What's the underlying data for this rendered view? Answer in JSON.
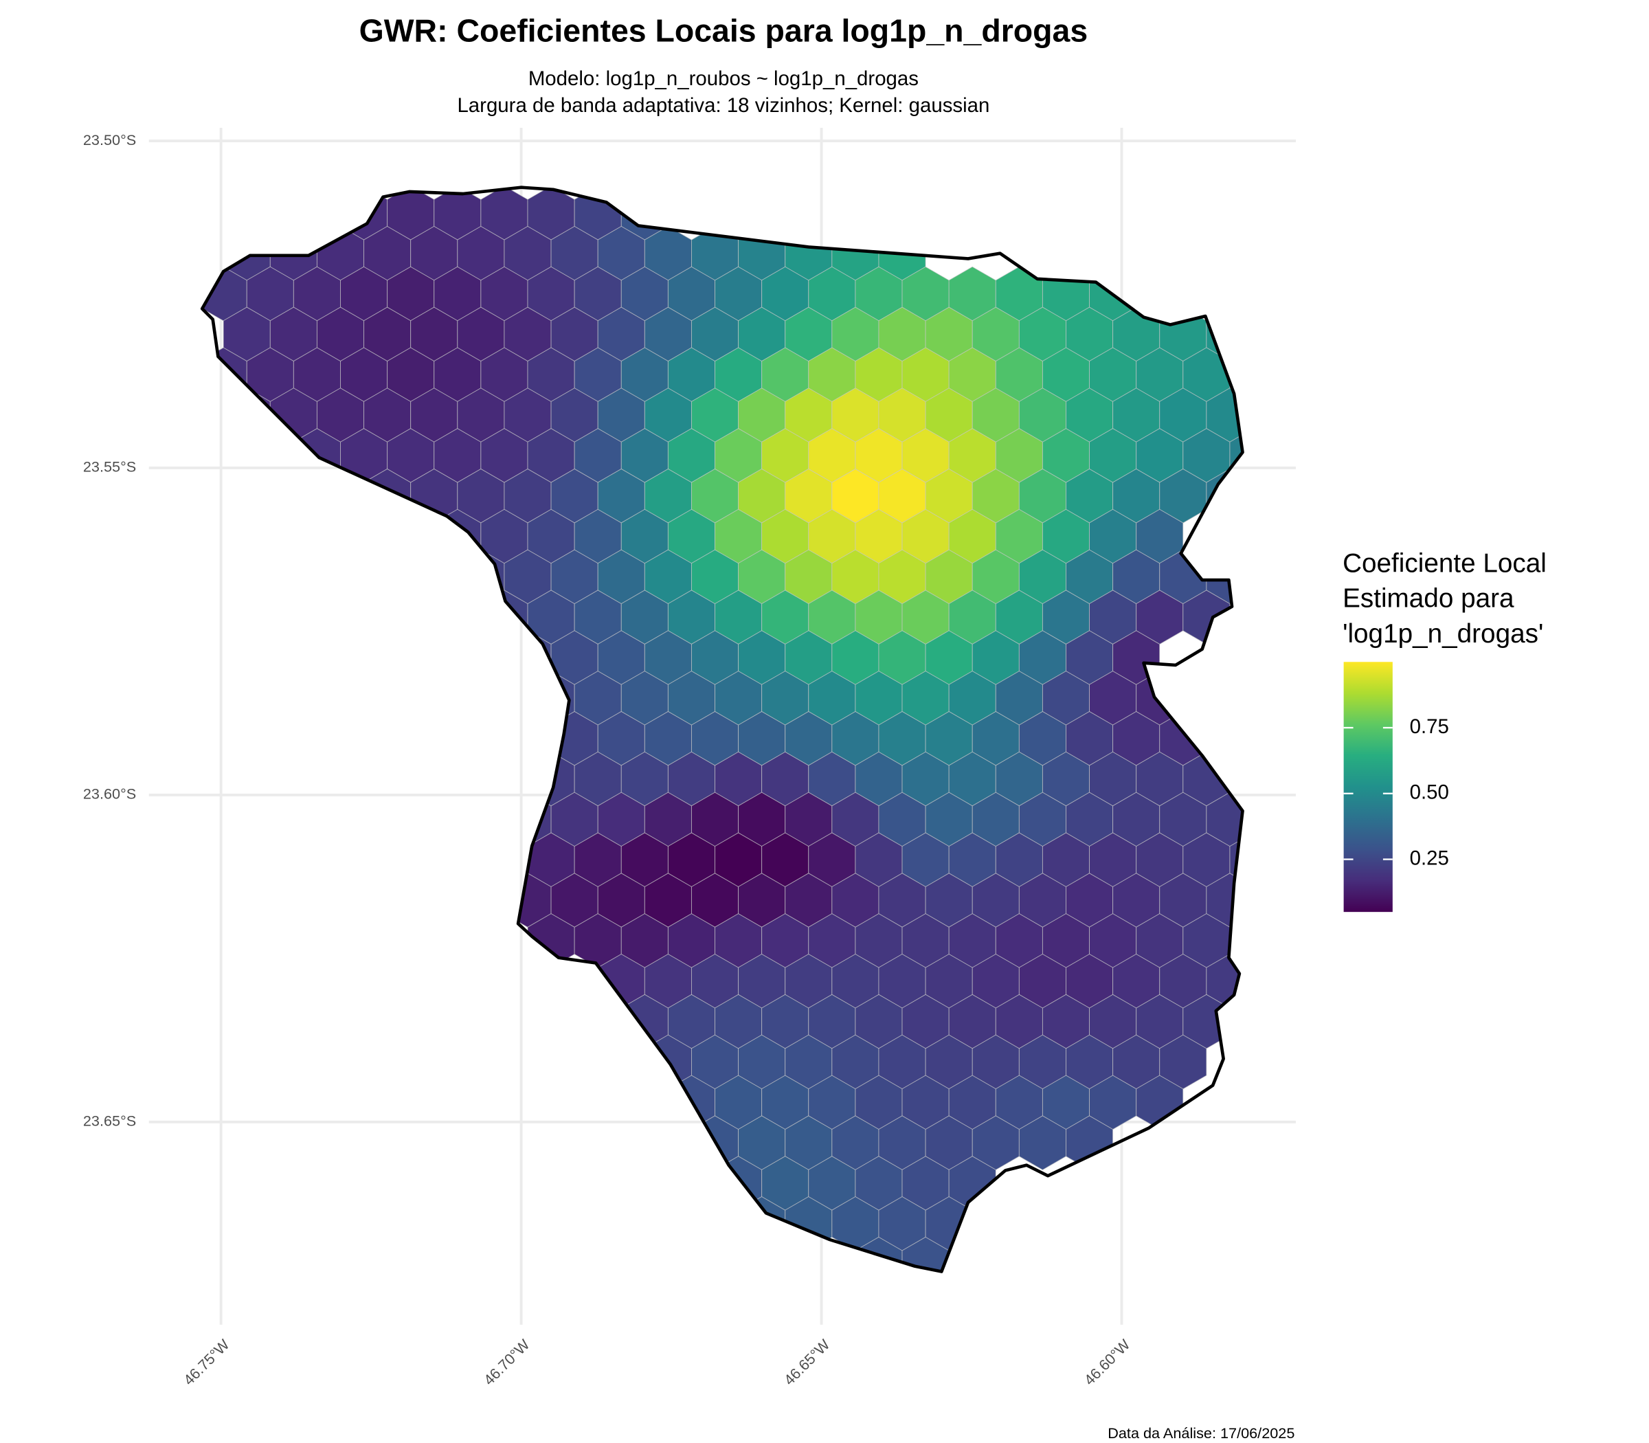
{
  "chart_data": {
    "type": "hexmap",
    "title": "GWR: Coeficientes Locais para log1p_n_drogas",
    "subtitle": [
      "Modelo: log1p_n_roubos ~ log1p_n_drogas",
      "Largura de banda adaptativa: 18 vizinhos; Kernel: gaussian"
    ],
    "caption": "Data da Análise: 17/06/2025",
    "xlim": [
      -46.762,
      -46.571
    ],
    "ylim": [
      -23.681,
      -23.498
    ],
    "xticks": [
      {
        "value": -46.75,
        "label": "46.75°W"
      },
      {
        "value": -46.7,
        "label": "46.70°W"
      },
      {
        "value": -46.65,
        "label": "46.65°W"
      },
      {
        "value": -46.6,
        "label": "46.60°W"
      }
    ],
    "yticks": [
      {
        "value": -23.5,
        "label": "23.50°S"
      },
      {
        "value": -23.55,
        "label": "23.55°S"
      },
      {
        "value": -23.6,
        "label": "23.60°S"
      },
      {
        "value": -23.65,
        "label": "23.65°S"
      }
    ],
    "grid": true,
    "colormap": "viridis",
    "legend": {
      "title": [
        "Coeficiente Local",
        "Estimado para",
        "'log1p_n_drogas'"
      ],
      "position": "right",
      "lim": [
        0.05,
        1.0
      ],
      "ticks": [
        0.25,
        {
          "value": 0.5,
          "label": "0.50"
        },
        0.75
      ]
    },
    "cells": [
      [
        null,
        null,
        null,
        0.17,
        0.16,
        0.17,
        0.18,
        0.2,
        0.24,
        0.3,
        null,
        null,
        null,
        null,
        null,
        null,
        null,
        null,
        null,
        null,
        null,
        null,
        null
      ],
      [
        0.2,
        0.18,
        0.17,
        0.16,
        0.16,
        0.17,
        0.19,
        0.23,
        0.28,
        0.35,
        0.42,
        0.47,
        0.55,
        0.6,
        0.63,
        null,
        null,
        null,
        null,
        null,
        null,
        null,
        null
      ],
      [
        0.2,
        0.18,
        0.16,
        0.14,
        0.13,
        0.14,
        0.16,
        0.19,
        0.23,
        0.3,
        0.38,
        0.45,
        0.53,
        0.62,
        0.68,
        0.7,
        0.7,
        0.66,
        0.62,
        0.6,
        null,
        null,
        null
      ],
      [
        0.18,
        0.16,
        0.14,
        0.13,
        0.13,
        0.14,
        0.16,
        0.2,
        0.27,
        0.36,
        0.45,
        0.55,
        0.66,
        0.75,
        0.8,
        0.8,
        0.74,
        0.66,
        0.62,
        0.58,
        0.56,
        0.54,
        null
      ],
      [
        0.18,
        0.16,
        0.15,
        0.14,
        0.13,
        0.14,
        0.16,
        0.2,
        0.27,
        0.38,
        0.5,
        0.63,
        0.74,
        0.83,
        0.88,
        0.88,
        0.83,
        0.73,
        0.65,
        0.6,
        0.56,
        0.54,
        0.52
      ],
      [
        0.17,
        0.16,
        0.15,
        0.15,
        0.15,
        0.16,
        0.18,
        0.23,
        0.34,
        0.5,
        0.66,
        0.8,
        0.9,
        0.95,
        0.94,
        0.88,
        0.8,
        0.7,
        0.62,
        0.56,
        0.52,
        0.5,
        null
      ],
      [
        null,
        null,
        0.18,
        0.17,
        0.17,
        0.17,
        0.18,
        0.21,
        0.3,
        0.43,
        0.62,
        0.78,
        0.9,
        0.97,
        0.98,
        0.96,
        0.9,
        0.8,
        0.67,
        0.58,
        0.52,
        0.48,
        0.46
      ],
      [
        null,
        null,
        null,
        0.19,
        0.19,
        0.2,
        0.22,
        0.27,
        0.4,
        0.58,
        0.74,
        0.87,
        0.96,
        1.0,
        0.99,
        0.93,
        0.83,
        0.7,
        0.57,
        0.48,
        0.44,
        0.42,
        null
      ],
      [
        null,
        null,
        null,
        null,
        null,
        0.21,
        0.22,
        0.25,
        0.32,
        0.45,
        0.62,
        0.78,
        0.88,
        0.94,
        0.96,
        0.94,
        0.88,
        0.76,
        0.62,
        0.46,
        0.36,
        null,
        null
      ],
      [
        null,
        null,
        null,
        null,
        null,
        0.23,
        0.25,
        0.29,
        0.38,
        0.5,
        0.63,
        0.76,
        0.85,
        0.9,
        0.9,
        0.85,
        0.75,
        0.6,
        0.44,
        0.3,
        0.28,
        0.27,
        null
      ],
      [
        null,
        null,
        null,
        null,
        null,
        null,
        0.24,
        0.27,
        0.31,
        0.38,
        0.48,
        0.58,
        0.67,
        0.74,
        0.78,
        0.78,
        0.7,
        0.6,
        0.42,
        0.25,
        0.18,
        0.22,
        null
      ],
      [
        null,
        null,
        null,
        null,
        null,
        null,
        0.25,
        0.27,
        0.31,
        0.37,
        0.43,
        0.5,
        0.58,
        0.64,
        0.67,
        0.64,
        0.55,
        0.4,
        0.25,
        0.16,
        null,
        null,
        null
      ],
      [
        null,
        null,
        null,
        null,
        null,
        null,
        null,
        0.25,
        0.28,
        0.32,
        0.36,
        0.4,
        0.45,
        0.5,
        0.55,
        0.56,
        0.5,
        0.38,
        0.26,
        0.17,
        0.16,
        null,
        null
      ],
      [
        null,
        null,
        null,
        null,
        null,
        null,
        null,
        0.24,
        0.27,
        0.3,
        0.32,
        0.34,
        0.37,
        0.42,
        0.46,
        0.46,
        0.4,
        0.3,
        0.22,
        0.18,
        0.18,
        null,
        null
      ],
      [
        null,
        null,
        null,
        null,
        null,
        null,
        null,
        0.22,
        0.23,
        0.24,
        0.22,
        0.19,
        0.2,
        0.27,
        0.35,
        0.4,
        0.4,
        0.36,
        0.28,
        0.23,
        0.22,
        0.22,
        null
      ],
      [
        null,
        null,
        null,
        null,
        null,
        null,
        0.2,
        0.19,
        0.17,
        0.13,
        0.09,
        0.08,
        0.12,
        0.2,
        0.3,
        0.35,
        0.33,
        0.28,
        0.24,
        0.22,
        0.22,
        0.22,
        null
      ],
      [
        null,
        null,
        null,
        null,
        null,
        null,
        0.17,
        0.14,
        0.11,
        0.08,
        0.06,
        0.05,
        0.06,
        0.11,
        0.2,
        0.28,
        0.27,
        0.24,
        0.2,
        0.19,
        0.2,
        0.21,
        0.22
      ],
      [
        null,
        null,
        null,
        null,
        null,
        null,
        0.13,
        0.11,
        0.09,
        0.07,
        0.07,
        0.09,
        0.12,
        0.16,
        0.2,
        0.22,
        0.21,
        0.19,
        0.17,
        0.18,
        0.2,
        0.21,
        null
      ],
      [
        null,
        null,
        null,
        null,
        null,
        null,
        null,
        0.13,
        0.12,
        0.12,
        0.14,
        0.16,
        0.17,
        0.18,
        0.2,
        0.2,
        0.19,
        0.17,
        0.16,
        0.17,
        0.19,
        0.21,
        null
      ],
      [
        null,
        null,
        null,
        null,
        null,
        null,
        null,
        null,
        0.17,
        0.19,
        0.21,
        0.22,
        0.22,
        0.22,
        0.21,
        0.2,
        0.18,
        0.16,
        0.16,
        0.18,
        0.2,
        0.21,
        null
      ],
      [
        null,
        null,
        null,
        null,
        null,
        null,
        null,
        null,
        null,
        0.22,
        0.25,
        0.26,
        0.26,
        0.25,
        0.23,
        0.21,
        0.2,
        0.19,
        0.19,
        0.2,
        0.21,
        0.22,
        null
      ],
      [
        null,
        null,
        null,
        null,
        null,
        null,
        null,
        null,
        null,
        0.25,
        0.28,
        0.29,
        0.28,
        0.26,
        0.24,
        0.23,
        0.23,
        0.24,
        0.24,
        0.23,
        0.23,
        null,
        null
      ],
      [
        null,
        null,
        null,
        null,
        null,
        null,
        null,
        null,
        null,
        null,
        0.28,
        0.31,
        0.31,
        0.29,
        0.26,
        0.25,
        0.25,
        0.27,
        0.29,
        0.27,
        0.25,
        null,
        null
      ],
      [
        null,
        null,
        null,
        null,
        null,
        null,
        null,
        null,
        null,
        null,
        0.3,
        0.33,
        0.32,
        0.29,
        0.27,
        0.26,
        0.27,
        0.28,
        0.27,
        null,
        null,
        null,
        null
      ],
      [
        null,
        null,
        null,
        null,
        null,
        null,
        null,
        null,
        null,
        null,
        null,
        0.31,
        0.34,
        0.32,
        0.29,
        0.27,
        0.27,
        null,
        null,
        null,
        null,
        null,
        null
      ],
      [
        null,
        null,
        null,
        null,
        null,
        null,
        null,
        null,
        null,
        null,
        null,
        0.33,
        0.33,
        0.31,
        0.29,
        0.28,
        null,
        null,
        null,
        null,
        null,
        null,
        null
      ],
      [
        null,
        null,
        null,
        null,
        null,
        null,
        null,
        null,
        null,
        null,
        null,
        null,
        null,
        null,
        0.3,
        0.29,
        null,
        null,
        null,
        null,
        null,
        null,
        null
      ]
    ]
  }
}
